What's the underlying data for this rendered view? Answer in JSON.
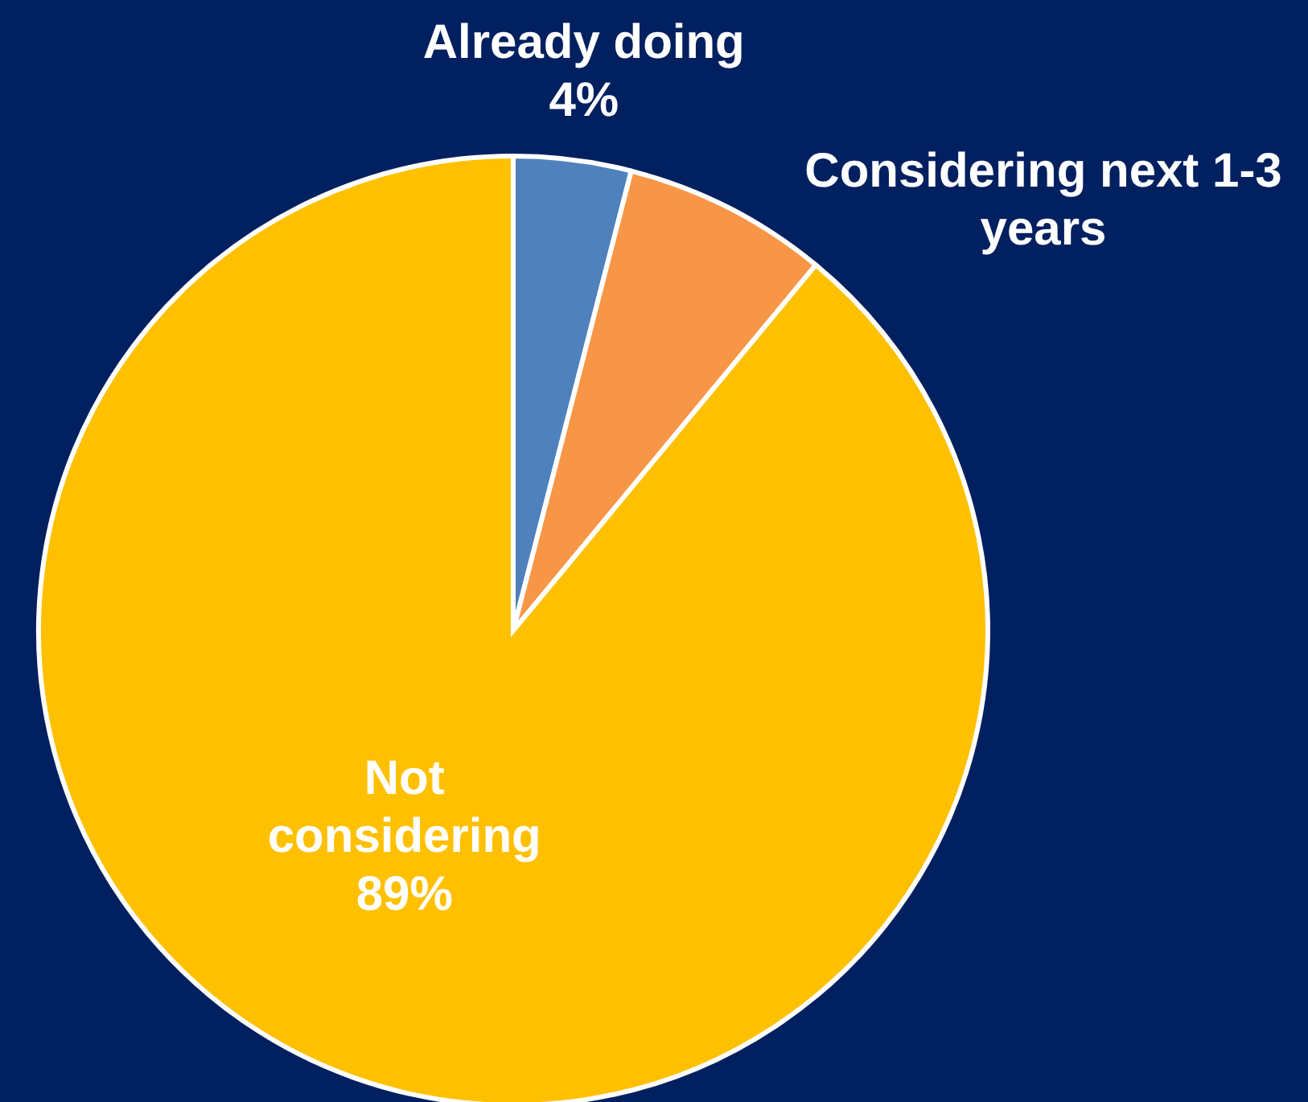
{
  "chart_data": {
    "type": "pie",
    "categories": [
      "Already doing",
      "Considering next 1-3 years",
      "Not considering"
    ],
    "values": [
      4,
      7,
      89
    ],
    "colors": [
      "#4f81bd",
      "#f79646",
      "#ffc000"
    ],
    "value_labels": [
      "4%",
      null,
      "89%"
    ]
  }
}
